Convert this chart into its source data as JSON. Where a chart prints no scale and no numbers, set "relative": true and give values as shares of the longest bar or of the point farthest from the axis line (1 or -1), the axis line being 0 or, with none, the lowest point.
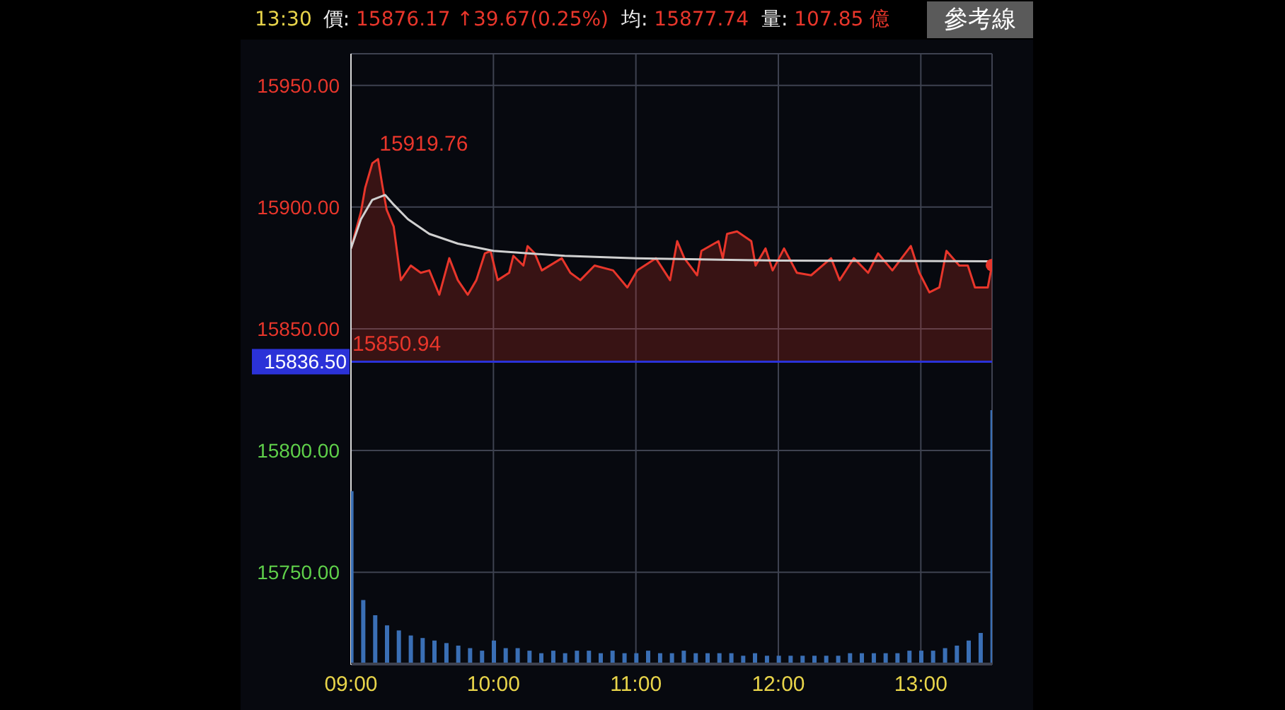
{
  "chart_data": [
    {
      "type": "area",
      "title": "13:30",
      "annotations": [
        "價: 15876.17 ↑39.67(0.25%)",
        "均: 15877.74",
        "量: 107.85 億",
        "參考線",
        {
          "text": "15919.76",
          "x": 9.19,
          "y": 15919.76
        },
        {
          "text": "15850.94",
          "x": 9.0,
          "y": 15850.94
        }
      ],
      "series": [
        {
          "color": "#e8362b",
          "x": [
            9.0,
            9.07,
            9.1,
            9.15,
            9.19,
            9.22,
            9.25,
            9.3,
            9.35,
            9.42,
            9.49,
            9.55,
            9.62,
            9.69,
            9.75,
            9.82,
            9.88,
            9.94,
            9.98,
            10.03,
            10.11,
            10.14,
            10.21,
            10.24,
            10.29,
            10.34,
            10.48,
            10.54,
            10.61,
            10.71,
            10.84,
            10.94,
            11.01,
            11.14,
            11.24,
            11.29,
            11.34,
            11.43,
            11.46,
            11.58,
            11.61,
            11.64,
            11.71,
            11.81,
            11.84,
            11.91,
            11.96,
            12.04,
            12.13,
            12.23,
            12.37,
            12.43,
            12.53,
            12.63,
            12.7,
            12.8,
            12.93,
            12.99,
            13.06,
            13.13,
            13.18,
            13.27,
            13.33,
            13.38,
            13.47,
            13.5
          ],
          "values": [
            15883,
            15898,
            15908,
            15918,
            15919.76,
            15909,
            15899,
            15892,
            15870,
            15876,
            15873,
            15874,
            15864,
            15879,
            15870,
            15864,
            15870,
            15881,
            15882,
            15870,
            15873,
            15880,
            15876,
            15884,
            15881,
            15874,
            15879,
            15873,
            15870,
            15876,
            15874,
            15867,
            15874,
            15879,
            15870,
            15886,
            15879,
            15872,
            15882,
            15886,
            15879,
            15889,
            15890,
            15886,
            15876,
            15883,
            15874,
            15883,
            15873,
            15872,
            15879,
            15870,
            15879,
            15873,
            15881,
            15874,
            15884,
            15873,
            15865,
            15867,
            15882,
            15876,
            15876,
            15867,
            15867,
            15876.17
          ]
        },
        {
          "type": "line",
          "color": "#d0d0d0",
          "x": [
            9.0,
            9.07,
            9.15,
            9.24,
            9.3,
            9.4,
            9.55,
            9.75,
            10.0,
            10.5,
            11.0,
            12.0,
            13.5
          ],
          "values": [
            15883,
            15895,
            15903,
            15905,
            15901,
            15895,
            15889,
            15885,
            15882,
            15880,
            15879,
            15878,
            15877.74
          ]
        }
      ],
      "xlim": [
        9,
        13.5
      ],
      "xticks": [
        {
          "value": 9,
          "label": "09:00"
        },
        {
          "value": 10,
          "label": "10:00"
        },
        {
          "value": 11,
          "label": "11:00"
        },
        {
          "value": 12,
          "label": "12:00"
        },
        {
          "value": 13,
          "label": "13:00"
        }
      ],
      "ylim": [
        15712,
        15963
      ],
      "yticks": [
        {
          "value": 15750,
          "label": "15750.00"
        },
        {
          "value": 15800,
          "label": "15800.00"
        },
        {
          "value": 15850,
          "label": "15850.00"
        },
        {
          "value": 15900,
          "label": "15900.00"
        },
        {
          "value": 15950,
          "label": "15950.00"
        }
      ],
      "ref_lines": [
        {
          "axis": "y",
          "value": 15836.5,
          "label": "15836.50",
          "color": "#2b32d8"
        }
      ],
      "grid": true,
      "marker": "none"
    },
    {
      "type": "bar",
      "relative": true,
      "color": "#3a6fb5",
      "tick_labels": false,
      "xlim": [
        9,
        13.5
      ],
      "x": [
        9,
        9.083,
        9.167,
        9.25,
        9.333,
        9.417,
        9.5,
        9.583,
        9.667,
        9.75,
        9.833,
        9.917,
        10,
        10.083,
        10.167,
        10.25,
        10.333,
        10.417,
        10.5,
        10.583,
        10.667,
        10.75,
        10.833,
        10.917,
        11,
        11.083,
        11.167,
        11.25,
        11.333,
        11.417,
        11.5,
        11.583,
        11.667,
        11.75,
        11.833,
        11.917,
        12,
        12.083,
        12.167,
        12.25,
        12.333,
        12.417,
        12.5,
        12.583,
        12.667,
        12.75,
        12.833,
        12.917,
        13,
        13.083,
        13.167,
        13.25,
        13.333,
        13.417,
        13.5
      ],
      "values": [
        0.68,
        0.25,
        0.19,
        0.15,
        0.13,
        0.11,
        0.1,
        0.09,
        0.08,
        0.07,
        0.06,
        0.05,
        0.09,
        0.06,
        0.06,
        0.05,
        0.04,
        0.05,
        0.04,
        0.05,
        0.05,
        0.04,
        0.05,
        0.04,
        0.04,
        0.05,
        0.04,
        0.04,
        0.05,
        0.04,
        0.04,
        0.04,
        0.04,
        0.03,
        0.04,
        0.03,
        0.03,
        0.03,
        0.03,
        0.03,
        0.03,
        0.03,
        0.04,
        0.04,
        0.04,
        0.04,
        0.04,
        0.05,
        0.05,
        0.05,
        0.06,
        0.07,
        0.09,
        0.12,
        1
      ]
    }
  ]
}
